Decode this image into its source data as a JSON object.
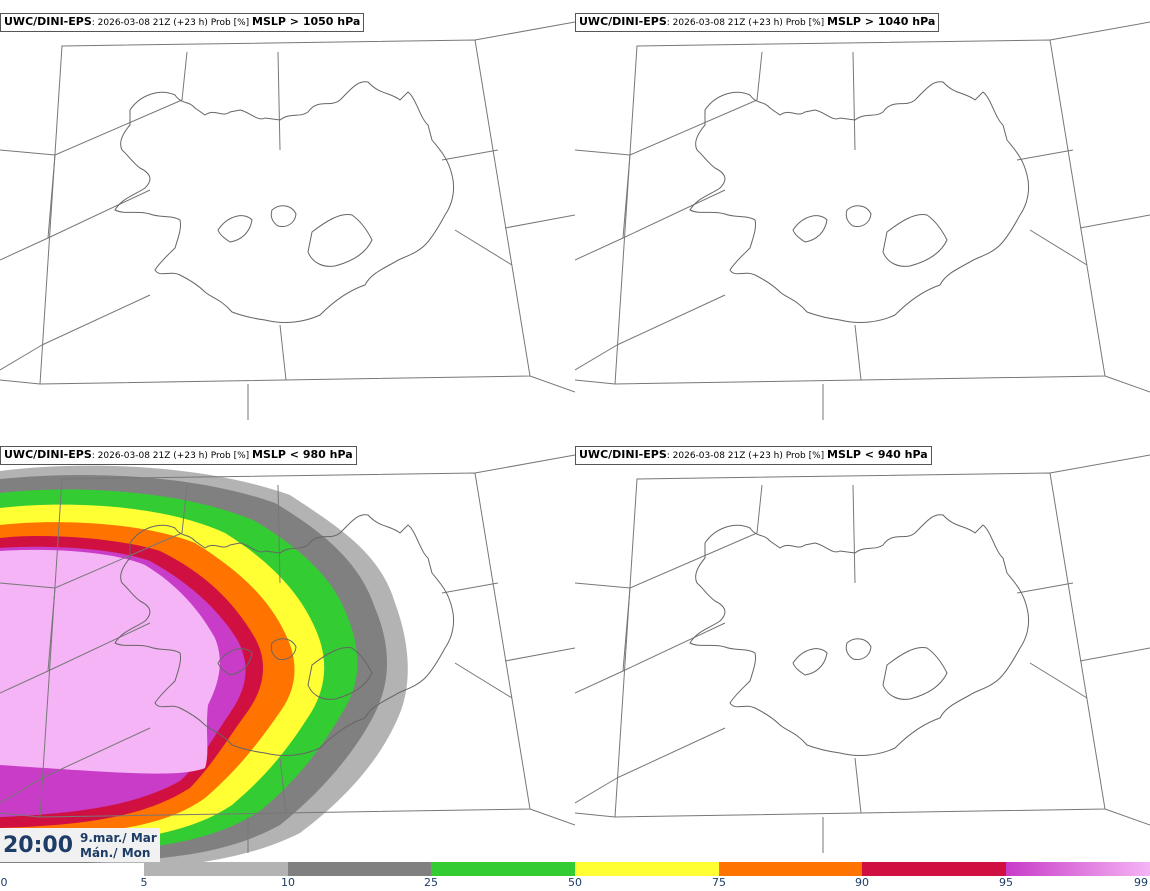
{
  "panels": [
    {
      "model": "UWC/DINI-EPS",
      "run": ": 2026-03-08 21Z (+23 h) Prob [%] ",
      "variable": "MSLP > 1050 hPa"
    },
    {
      "model": "UWC/DINI-EPS",
      "run": ": 2026-03-08 21Z (+23 h) Prob [%] ",
      "variable": "MSLP > 1040 hPa"
    },
    {
      "model": "UWC/DINI-EPS",
      "run": ": 2026-03-08 21Z (+23 h) Prob [%] ",
      "variable": "MSLP < 980 hPa"
    },
    {
      "model": "UWC/DINI-EPS",
      "run": ": 2026-03-08 21Z (+23 h) Prob [%] ",
      "variable": "MSLP < 940 hPa"
    }
  ],
  "valid_time": {
    "time": "20:00",
    "date_line1": "9.mar./ Mar",
    "date_line2": "Mán./ Mon"
  },
  "colorbar": {
    "ticks": [
      "0",
      "5",
      "10",
      "25",
      "50",
      "75",
      "90",
      "95",
      "99"
    ],
    "segments": [
      {
        "from": "5",
        "to": "10",
        "color": "#b3b3b3"
      },
      {
        "from": "10",
        "to": "25",
        "color": "#808080"
      },
      {
        "from": "25",
        "to": "50",
        "color": "#33cc33"
      },
      {
        "from": "50",
        "to": "75",
        "color": "#ffff33"
      },
      {
        "from": "75",
        "to": "90",
        "color": "#ff7300"
      },
      {
        "from": "90",
        "to": "95",
        "color": "#d01040"
      },
      {
        "from": "95",
        "to": "99",
        "color": "gradient-magenta"
      }
    ]
  },
  "colors": {
    "coast": "#666666",
    "grid": "#777777",
    "text_dark_blue": "#1d3c66",
    "p5": "#b3b3b3",
    "p10": "#808080",
    "p25": "#33cc33",
    "p50": "#ffff33",
    "p75": "#ff7300",
    "p90": "#d01040",
    "p95": "#c83cc8",
    "p99": "#f5b4f5"
  }
}
